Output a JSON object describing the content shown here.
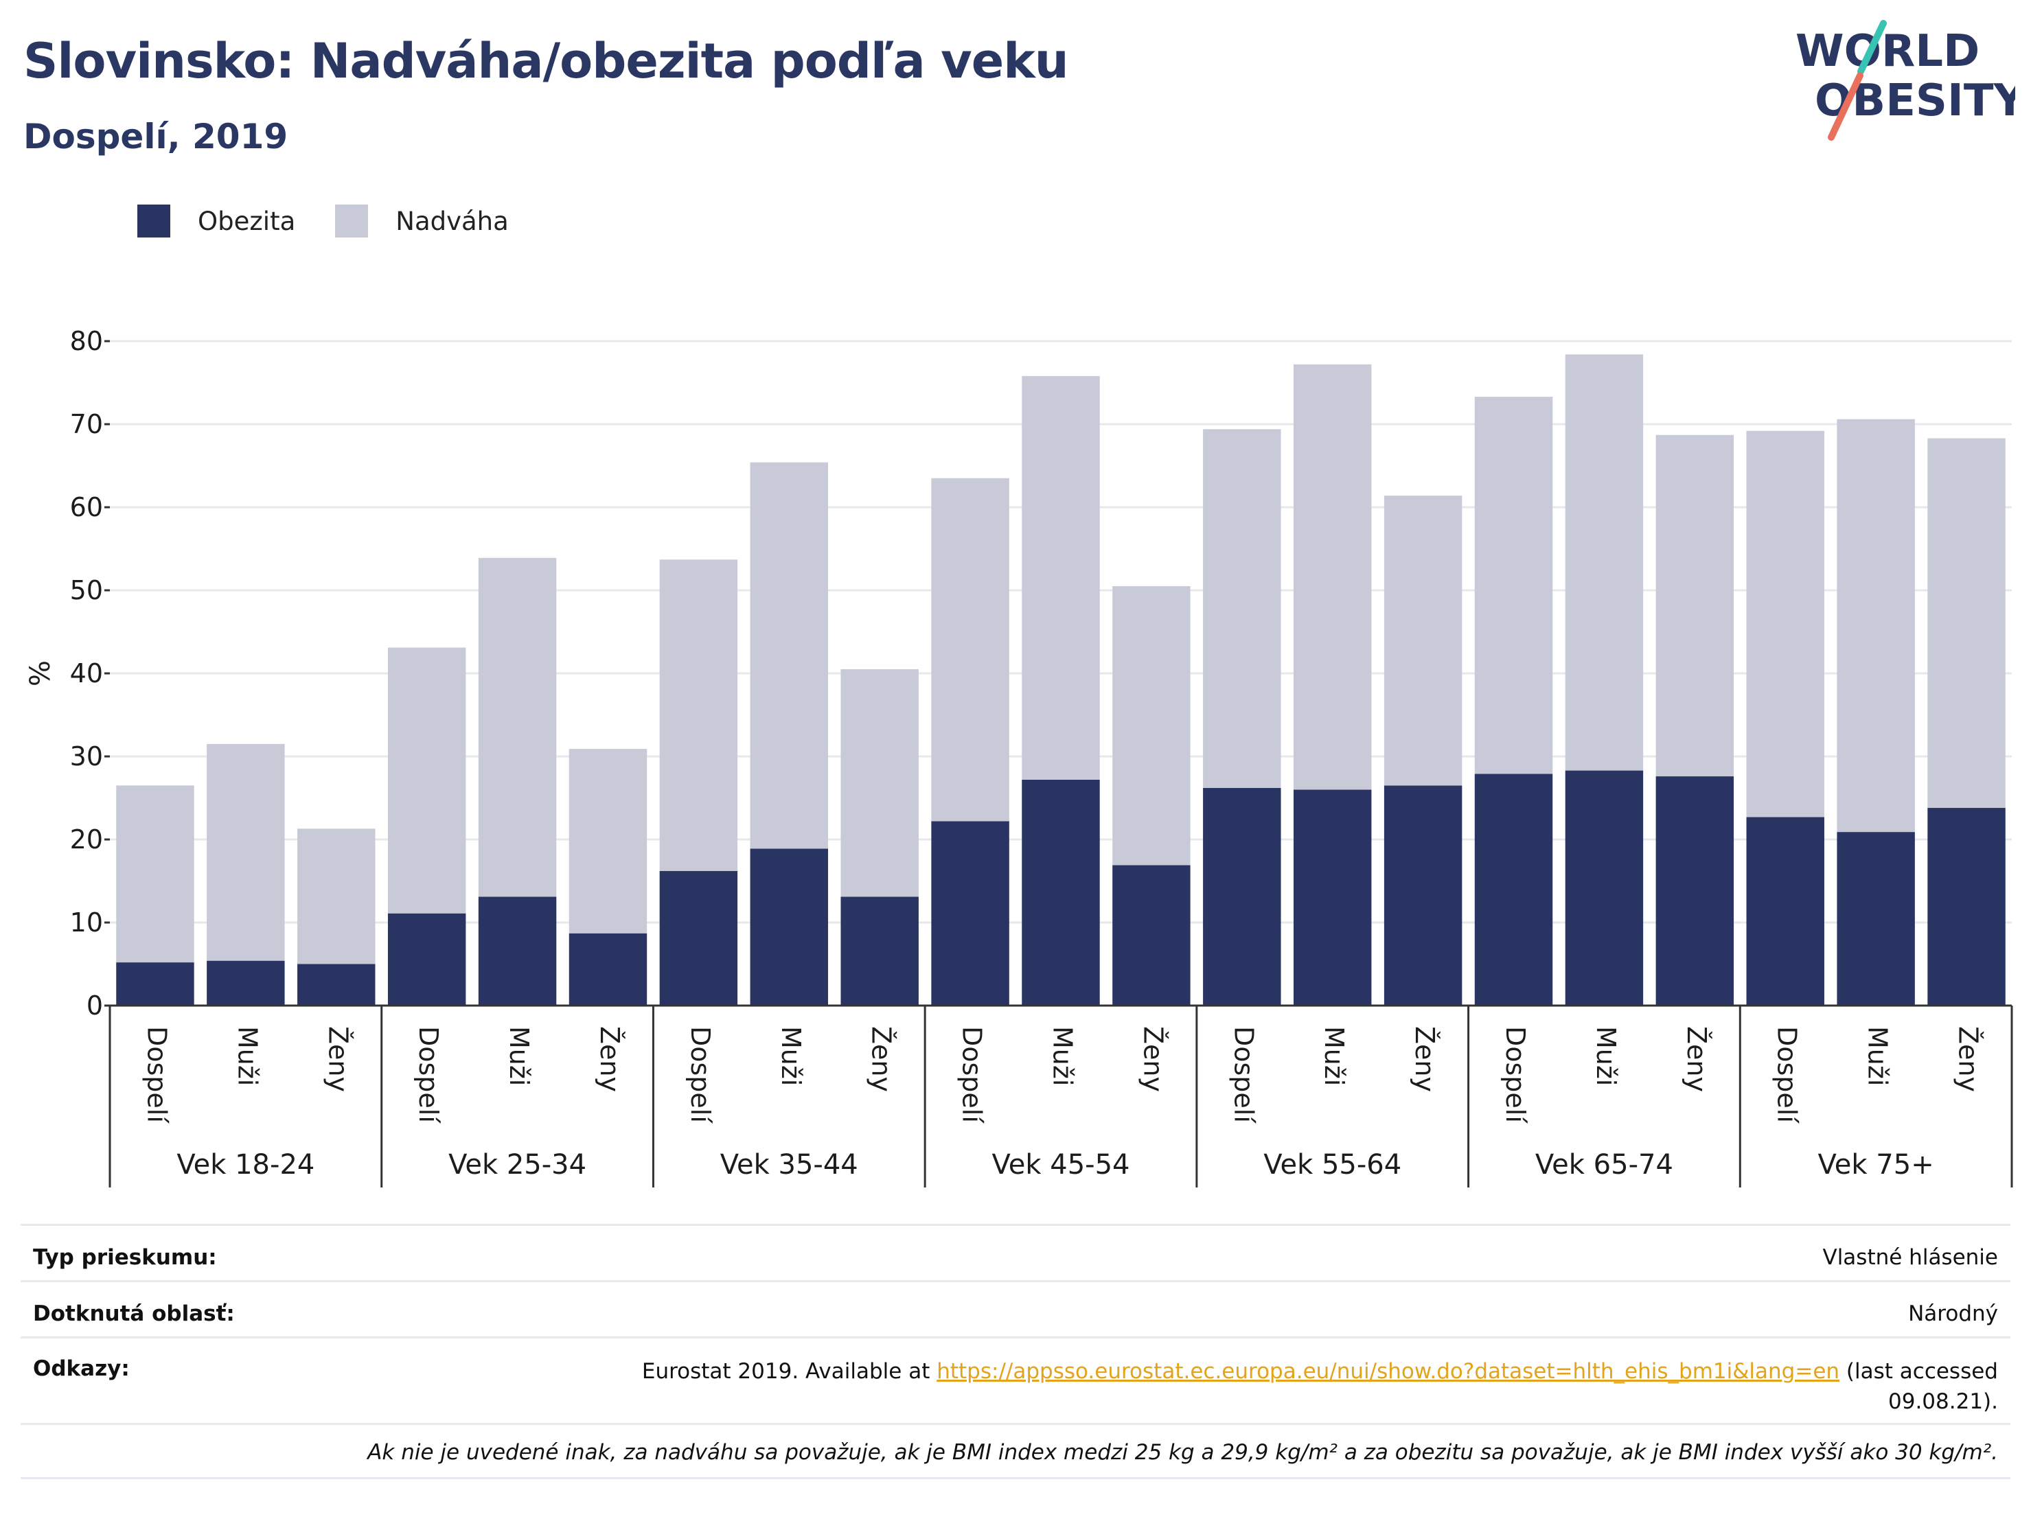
{
  "header": {
    "title": "Slovinsko: Nadváha/obezita podľa veku",
    "subtitle": "Dospelí, 2019"
  },
  "logo": {
    "line1": "WORLD",
    "line2": "OBESITY",
    "colors": {
      "text": "#2b3763",
      "stroke_top": "#39c3b3",
      "stroke_bottom": "#e8705c"
    }
  },
  "legend": {
    "items": [
      {
        "label": "Obezita",
        "color": "#293462"
      },
      {
        "label": "Nadváha",
        "color": "#c8cad7"
      }
    ]
  },
  "chart_data": {
    "type": "bar",
    "stacked": true,
    "ylabel": "%",
    "ylim": [
      0,
      80
    ],
    "yticks": [
      0,
      10,
      20,
      30,
      40,
      50,
      60,
      70,
      80
    ],
    "grid": true,
    "groups": [
      "Vek 18-24",
      "Vek 25-34",
      "Vek 35-44",
      "Vek 45-54",
      "Vek 55-64",
      "Vek 65-74",
      "Vek 75+"
    ],
    "subcategories": [
      "Dospelí",
      "Muži",
      "Ženy"
    ],
    "series": [
      {
        "name": "Obezita",
        "color": "#293462",
        "values": [
          5.2,
          5.4,
          5.0,
          11.1,
          13.1,
          8.7,
          16.2,
          18.9,
          13.1,
          22.2,
          27.2,
          16.9,
          26.2,
          26.0,
          26.5,
          27.9,
          28.3,
          27.6,
          22.7,
          20.9,
          23.8
        ]
      },
      {
        "name": "Nadváha",
        "color": "#c8cad7",
        "values": [
          21.3,
          26.1,
          16.3,
          32.0,
          40.8,
          22.2,
          37.5,
          46.5,
          27.4,
          41.3,
          48.6,
          33.6,
          43.2,
          51.2,
          34.9,
          45.4,
          50.1,
          41.1,
          46.5,
          49.7,
          44.5
        ]
      }
    ]
  },
  "footer": {
    "rows": [
      {
        "label": "Typ prieskumu:",
        "value": "Vlastné hlásenie"
      },
      {
        "label": "Dotknutá oblasť:",
        "value": "Národný"
      }
    ],
    "references": {
      "label": "Odkazy:",
      "before": "Eurostat 2019. Available at ",
      "link": "https://appsso.eurostat.ec.europa.eu/nui/show.do?dataset=hlth_ehis_bm1i&lang=en",
      "after": " (last accessed 09.08.21)."
    },
    "note": "Ak nie je uvedené inak, za nadváhu sa považuje, ak je BMI index medzi 25 kg a 29,9 kg/m² a za obezitu sa považuje, ak je BMI index vyšší ako 30 kg/m²."
  }
}
